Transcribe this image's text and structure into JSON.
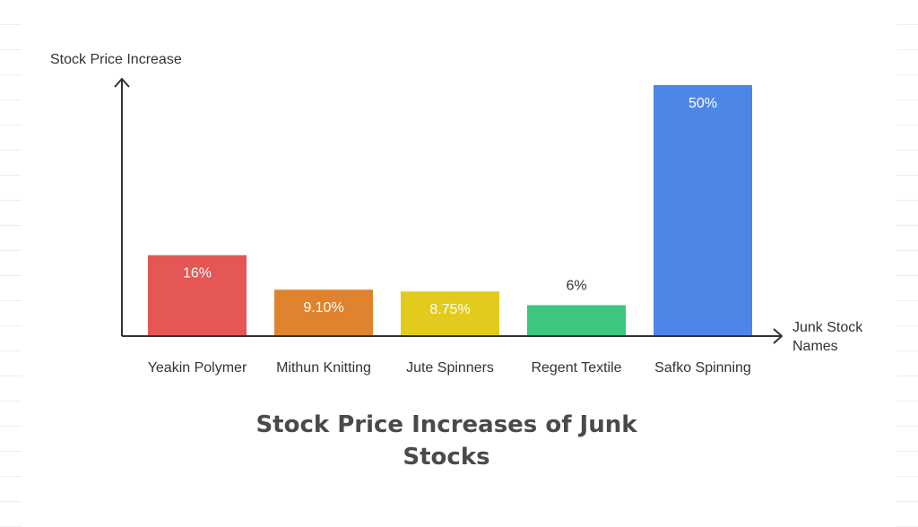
{
  "chart_data": {
    "type": "bar",
    "title": "Stock Price Increases of Junk Stocks",
    "ylabel": "Stock Price Increase",
    "xlabel": [
      "Junk Stock",
      "Names"
    ],
    "categories": [
      "Yeakin Polymer",
      "Mithun Knitting",
      "Jute Spinners",
      "Regent Textile",
      "Safko Spinning"
    ],
    "values": [
      16,
      9.1,
      8.75,
      6,
      50
    ],
    "value_labels": [
      "16%",
      "9.10%",
      "8.75%",
      "6%",
      "50%"
    ],
    "colors": [
      "#e45755",
      "#e0832e",
      "#e2cb1c",
      "#3cc67e",
      "#4d86e6"
    ],
    "ylim": [
      0,
      50
    ],
    "grid": false,
    "legend": "none"
  }
}
